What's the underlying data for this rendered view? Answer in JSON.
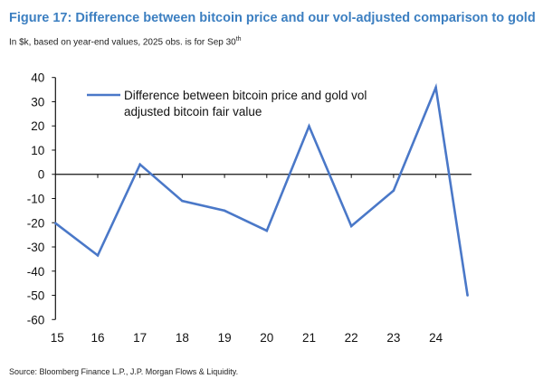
{
  "title": "Figure 17: Difference between bitcoin price and our vol-adjusted comparison to gold",
  "subtitle": "In $k, based on year-end values, 2025 obs. is for Sep 30",
  "subtitle_sup": "th",
  "source": "Source: Bloomberg Finance L.P., J.P. Morgan Flows & Liquidity.",
  "chart_data": {
    "type": "line",
    "title": "Figure 17: Difference between bitcoin price and our vol-adjusted comparison to gold",
    "xlabel": "",
    "ylabel": "",
    "categories": [
      "15",
      "16",
      "17",
      "18",
      "19",
      "20",
      "21",
      "22",
      "23",
      "24"
    ],
    "x": [
      15,
      16,
      17,
      18,
      19,
      20,
      21,
      22,
      23,
      24,
      24.75
    ],
    "series": [
      {
        "name": "Difference between bitcoin price and gold vol adjusted bitcoin fair value",
        "legend_lines": [
          "Difference between bitcoin price and gold vol",
          "adjusted bitcoin fair value"
        ],
        "values": [
          -20.2,
          -33.5,
          4.1,
          -11,
          -15,
          -23.3,
          19.9,
          -21.4,
          -6.7,
          35.9,
          -50
        ],
        "color": "#4a78c8"
      }
    ],
    "yticks": [
      40,
      30,
      20,
      10,
      0,
      -10,
      -20,
      -30,
      -40,
      -50,
      -60
    ],
    "ylim": [
      -60,
      40
    ],
    "grid": false,
    "legend": "top-left"
  }
}
